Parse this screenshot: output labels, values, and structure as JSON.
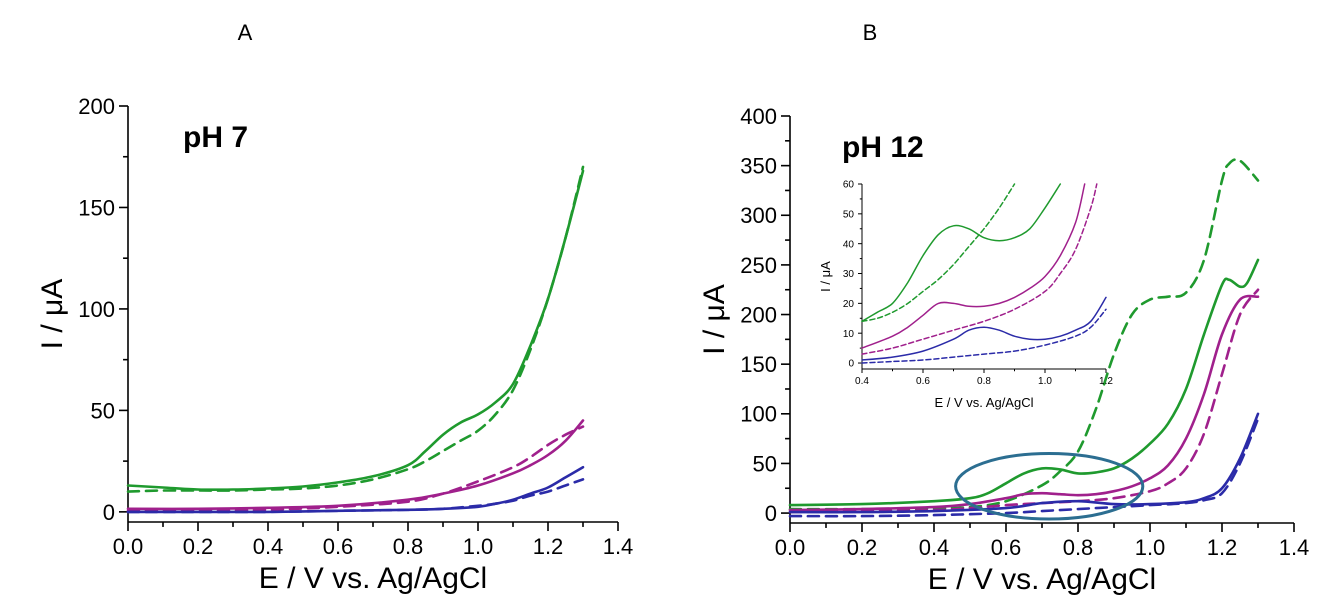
{
  "chart_data": [
    {
      "panel_label": "A",
      "type": "line",
      "annotation": "pH 7",
      "xlabel": "E / V vs. Ag/AgCl",
      "ylabel": "I / μA",
      "xlim": [
        0.0,
        1.4
      ],
      "ylim": [
        -5,
        200
      ],
      "xticks": [
        0.0,
        0.2,
        0.4,
        0.6,
        0.8,
        1.0,
        1.2,
        1.4
      ],
      "xtick_labels": [
        "0.0",
        "0.2",
        "0.4",
        "0.6",
        "0.8",
        "1.0",
        "1.2",
        "1.4"
      ],
      "yticks": [
        0,
        50,
        100,
        150,
        200
      ],
      "ytick_labels": [
        "0",
        "50",
        "100",
        "150",
        "200"
      ],
      "grid": false,
      "series": [
        {
          "color": "#1f9a2e",
          "dash": false,
          "x": [
            0.0,
            0.1,
            0.2,
            0.3,
            0.4,
            0.5,
            0.6,
            0.7,
            0.8,
            0.85,
            0.9,
            0.95,
            1.0,
            1.05,
            1.1,
            1.15,
            1.2,
            1.25,
            1.3
          ],
          "y": [
            13,
            12,
            11,
            11,
            11.5,
            12.5,
            14.5,
            17.5,
            23,
            30,
            38,
            44,
            48,
            54,
            63,
            82,
            105,
            135,
            168
          ]
        },
        {
          "color": "#1f9a2e",
          "dash": true,
          "x": [
            0.0,
            0.1,
            0.2,
            0.3,
            0.4,
            0.5,
            0.6,
            0.7,
            0.8,
            0.85,
            0.9,
            0.95,
            1.0,
            1.05,
            1.1,
            1.15,
            1.2,
            1.25,
            1.3
          ],
          "y": [
            10,
            10.5,
            10.5,
            10.5,
            11,
            11.5,
            13,
            16,
            21,
            25,
            30,
            35,
            40,
            48,
            60,
            80,
            105,
            135,
            170
          ]
        },
        {
          "color": "#a0208c",
          "dash": false,
          "x": [
            0.0,
            0.2,
            0.4,
            0.6,
            0.8,
            0.9,
            1.0,
            1.1,
            1.15,
            1.2,
            1.25,
            1.3
          ],
          "y": [
            1.5,
            1.5,
            2,
            3,
            6,
            9,
            13,
            19,
            23,
            28,
            35,
            45
          ]
        },
        {
          "color": "#a0208c",
          "dash": true,
          "x": [
            0.0,
            0.2,
            0.4,
            0.6,
            0.8,
            0.9,
            1.0,
            1.1,
            1.15,
            1.2,
            1.25,
            1.3
          ],
          "y": [
            0.5,
            0.5,
            1,
            2.5,
            5,
            9,
            15,
            22,
            27,
            33,
            38,
            42
          ]
        },
        {
          "color": "#2b2ba8",
          "dash": false,
          "x": [
            0.0,
            0.2,
            0.4,
            0.6,
            0.8,
            0.9,
            1.0,
            1.05,
            1.1,
            1.15,
            1.2,
            1.25,
            1.3
          ],
          "y": [
            0,
            0,
            0,
            0.5,
            1,
            1.5,
            2.5,
            4,
            6,
            9,
            12,
            17,
            22
          ]
        },
        {
          "color": "#2b2ba8",
          "dash": true,
          "x": [
            0.0,
            0.2,
            0.4,
            0.6,
            0.8,
            0.9,
            1.0,
            1.05,
            1.1,
            1.15,
            1.2,
            1.25,
            1.3
          ],
          "y": [
            0,
            0,
            0,
            0.5,
            1,
            1.5,
            3,
            4,
            5.5,
            8,
            10,
            13,
            16
          ]
        }
      ]
    },
    {
      "panel_label": "B",
      "type": "line",
      "annotation": "pH 12",
      "xlabel": "E / V vs. Ag/AgCl",
      "ylabel": "I / μA",
      "xlim": [
        0.0,
        1.4
      ],
      "ylim": [
        -10,
        400
      ],
      "xticks": [
        0.0,
        0.2,
        0.4,
        0.6,
        0.8,
        1.0,
        1.2,
        1.4
      ],
      "xtick_labels": [
        "0.0",
        "0.2",
        "0.4",
        "0.6",
        "0.8",
        "1.0",
        "1.2",
        "1.4"
      ],
      "yticks": [
        0,
        50,
        100,
        150,
        200,
        250,
        300,
        350,
        400
      ],
      "ytick_labels": [
        "0",
        "50",
        "100",
        "150",
        "200",
        "250",
        "300",
        "350",
        "400"
      ],
      "grid": false,
      "highlight_ellipse": {
        "center": [
          0.72,
          27
        ],
        "radius": [
          0.26,
          33
        ]
      },
      "series": [
        {
          "color": "#1f9a2e",
          "dash": false,
          "x": [
            0.0,
            0.2,
            0.4,
            0.5,
            0.55,
            0.6,
            0.65,
            0.7,
            0.75,
            0.8,
            0.85,
            0.9,
            0.95,
            1.0,
            1.05,
            1.1,
            1.15,
            1.2,
            1.22,
            1.25,
            1.27,
            1.3
          ],
          "y": [
            8,
            9,
            12,
            15,
            20,
            30,
            40,
            45,
            44,
            40,
            41,
            45,
            55,
            70,
            90,
            125,
            180,
            230,
            235,
            228,
            232,
            255
          ]
        },
        {
          "color": "#1f9a2e",
          "dash": true,
          "x": [
            0.0,
            0.2,
            0.4,
            0.5,
            0.6,
            0.7,
            0.75,
            0.8,
            0.85,
            0.9,
            0.95,
            1.0,
            1.05,
            1.1,
            1.15,
            1.2,
            1.22,
            1.25,
            1.3
          ],
          "y": [
            4,
            4,
            5,
            6,
            12,
            28,
            42,
            62,
            105,
            160,
            200,
            215,
            218,
            222,
            255,
            335,
            352,
            355,
            335
          ]
        },
        {
          "color": "#a0208c",
          "dash": false,
          "x": [
            0.0,
            0.2,
            0.4,
            0.5,
            0.6,
            0.65,
            0.7,
            0.75,
            0.8,
            0.85,
            0.9,
            0.95,
            1.0,
            1.05,
            1.1,
            1.15,
            1.2,
            1.25,
            1.3
          ],
          "y": [
            3,
            4,
            6,
            9,
            15,
            19,
            20,
            19,
            18,
            19,
            22,
            27,
            35,
            48,
            75,
            120,
            180,
            215,
            218
          ]
        },
        {
          "color": "#a0208c",
          "dash": true,
          "x": [
            0.0,
            0.2,
            0.4,
            0.5,
            0.6,
            0.7,
            0.8,
            0.9,
            1.0,
            1.05,
            1.1,
            1.15,
            1.2,
            1.25,
            1.3
          ],
          "y": [
            1,
            2,
            3,
            5,
            8,
            10,
            12,
            15,
            22,
            30,
            45,
            80,
            140,
            200,
            225
          ]
        },
        {
          "color": "#2b2ba8",
          "dash": false,
          "x": [
            0.0,
            0.2,
            0.4,
            0.6,
            0.7,
            0.8,
            0.9,
            1.0,
            1.1,
            1.15,
            1.2,
            1.25,
            1.3
          ],
          "y": [
            1,
            1,
            2,
            5,
            10,
            12,
            9,
            9,
            11,
            15,
            25,
            55,
            100
          ]
        },
        {
          "color": "#2b2ba8",
          "dash": true,
          "x": [
            0.0,
            0.2,
            0.4,
            0.6,
            0.7,
            0.8,
            0.9,
            1.0,
            1.1,
            1.15,
            1.2,
            1.25,
            1.3
          ],
          "y": [
            -3,
            -3,
            -2,
            0,
            2,
            4,
            6,
            8,
            10,
            13,
            20,
            50,
            95
          ]
        }
      ],
      "inset": {
        "type": "line",
        "xlabel": "E / V vs. Ag/AgCl",
        "ylabel": "I / μA",
        "xlim": [
          0.4,
          1.2
        ],
        "ylim": [
          -2,
          60
        ],
        "xticks": [
          0.4,
          0.6,
          0.8,
          1.0,
          1.2
        ],
        "xtick_labels": [
          "0.4",
          "0.6",
          "0.8",
          "1.0",
          "1.2"
        ],
        "yticks": [
          0,
          10,
          20,
          30,
          40,
          50,
          60
        ],
        "ytick_labels": [
          "0",
          "10",
          "20",
          "30",
          "40",
          "50",
          "60"
        ],
        "series": [
          {
            "color": "#1f9a2e",
            "dash": false,
            "x": [
              0.4,
              0.45,
              0.5,
              0.55,
              0.6,
              0.65,
              0.7,
              0.75,
              0.8,
              0.85,
              0.9,
              0.95,
              1.0,
              1.05
            ],
            "y": [
              14,
              17,
              20,
              27,
              36,
              43,
              46,
              45,
              42,
              41,
              42,
              45,
              52,
              60
            ]
          },
          {
            "color": "#1f9a2e",
            "dash": true,
            "x": [
              0.4,
              0.45,
              0.5,
              0.55,
              0.6,
              0.65,
              0.7,
              0.75,
              0.8,
              0.85,
              0.9
            ],
            "y": [
              14,
              15,
              17,
              20,
              24,
              28,
              33,
              39,
              45,
              52,
              60
            ]
          },
          {
            "color": "#a0208c",
            "dash": false,
            "x": [
              0.4,
              0.5,
              0.55,
              0.6,
              0.65,
              0.7,
              0.75,
              0.8,
              0.85,
              0.9,
              0.95,
              1.0,
              1.05,
              1.1,
              1.13
            ],
            "y": [
              5,
              9,
              12,
              16,
              20,
              20,
              19,
              19,
              20,
              22,
              25,
              29,
              36,
              47,
              60
            ]
          },
          {
            "color": "#a0208c",
            "dash": true,
            "x": [
              0.4,
              0.5,
              0.6,
              0.7,
              0.8,
              0.9,
              1.0,
              1.05,
              1.1,
              1.15,
              1.17
            ],
            "y": [
              3,
              5,
              8,
              11,
              14,
              18,
              24,
              30,
              38,
              52,
              60
            ]
          },
          {
            "color": "#2b2ba8",
            "dash": false,
            "x": [
              0.4,
              0.5,
              0.6,
              0.7,
              0.75,
              0.8,
              0.85,
              0.9,
              0.95,
              1.0,
              1.05,
              1.1,
              1.15,
              1.2
            ],
            "y": [
              1,
              2,
              4,
              8,
              11,
              12,
              11,
              9,
              8,
              8,
              9,
              11,
              14,
              22
            ]
          },
          {
            "color": "#2b2ba8",
            "dash": true,
            "x": [
              0.4,
              0.5,
              0.6,
              0.7,
              0.8,
              0.9,
              1.0,
              1.1,
              1.15,
              1.2
            ],
            "y": [
              0,
              0.5,
              1,
              2,
              3,
              4,
              6,
              9,
              12,
              18
            ]
          }
        ]
      }
    }
  ]
}
